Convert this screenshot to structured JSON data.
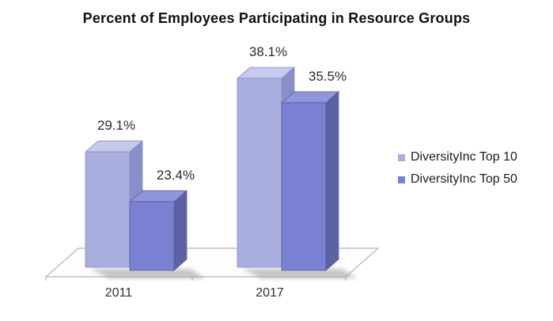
{
  "chart_data": {
    "type": "bar",
    "variant": "3d-clustered-column",
    "title": "Percent of Employees Participating in Resource Groups",
    "categories": [
      "2011",
      "2017"
    ],
    "series": [
      {
        "name": "DiversityInc Top 10",
        "values": [
          29.1,
          38.1
        ],
        "labels": [
          "29.1%",
          "38.1%"
        ],
        "front": "#aaaede",
        "top": "#c6c8ee",
        "side": "#8b8fc9",
        "edge": "#888cc4"
      },
      {
        "name": "DiversityInc Top 50",
        "values": [
          23.4,
          35.5
        ],
        "labels": [
          "23.4%",
          "35.5%"
        ],
        "front": "#7a80d2",
        "top": "#9095dc",
        "side": "#5d62a2",
        "edge": "#5a5e9c"
      }
    ],
    "xlabel": "",
    "ylabel": "",
    "axis": {
      "min": 15,
      "max": 40,
      "shown": false
    },
    "grid": false,
    "legend_position": "right",
    "colors": {
      "title_text": "#111111",
      "value_label_text": "#2b2b2b",
      "category_text": "#333333",
      "legend_text": "#1d1d1d",
      "floor_fill": "#fdfdfe",
      "floor_stroke": "#a6a6ac",
      "tick_stroke": "#a6a6ac",
      "shadow": "#8f8f8f",
      "background": "#ffffff"
    }
  }
}
